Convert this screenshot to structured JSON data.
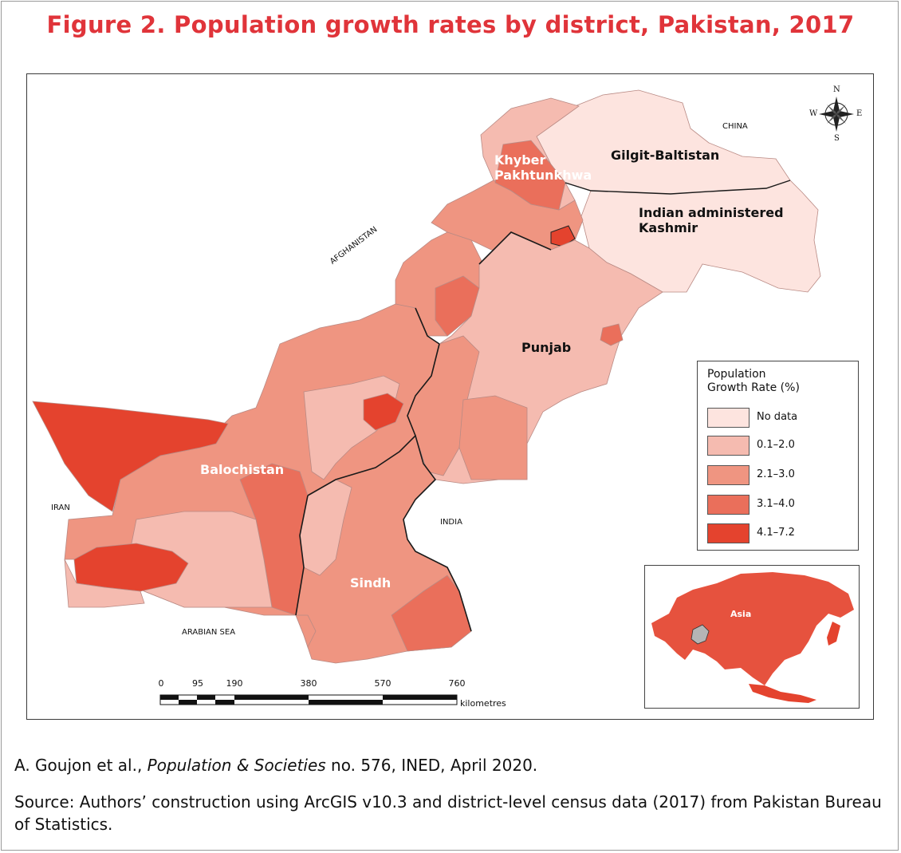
{
  "title": "Figure 2. Population growth rates by district, Pakistan, 2017",
  "map": {
    "regions": {
      "kpk": "Khyber\nPakhtunkhwa",
      "gilgit": "Gilgit-Baltistan",
      "kashmir": "Indian administered\nKashmir",
      "punjab": "Punjab",
      "balochistan": "Balochistan",
      "sindh": "Sindh"
    },
    "neighbours": {
      "china": "CHINA",
      "afghanistan": "AFGHANISTAN",
      "iran": "IRAN",
      "india": "INDIA",
      "sea": "ARABIAN SEA"
    },
    "compass": {
      "n": "N",
      "s": "S",
      "e": "E",
      "w": "W"
    },
    "inset_label": "Asia",
    "colors": {
      "no_data": "#fde4df",
      "c1": "#f5bbb0",
      "c2": "#ef9581",
      "c3": "#ea6f5b",
      "c4": "#e4432e"
    }
  },
  "legend": {
    "title": "Population\nGrowth Rate (%)",
    "items": [
      {
        "label": "No data",
        "color": "#fde4df"
      },
      {
        "label": "0.1–2.0",
        "color": "#f5bbb0"
      },
      {
        "label": "2.1–3.0",
        "color": "#ef9581"
      },
      {
        "label": "3.1–4.0",
        "color": "#ea6f5b"
      },
      {
        "label": "4.1–7.2",
        "color": "#e4432e"
      }
    ]
  },
  "scalebar": {
    "ticks": [
      "0",
      "95",
      "190",
      "380",
      "570",
      "760"
    ],
    "unit": "kilometres"
  },
  "credit": {
    "authors": "A. Goujon et al., ",
    "journal": "Population & Societies",
    "rest": " no. 576, INED, April 2020."
  },
  "source": "Source: Authors’ construction using ArcGIS v10.3 and district-level census data (2017) from Pakistan Bureau of Statistics."
}
